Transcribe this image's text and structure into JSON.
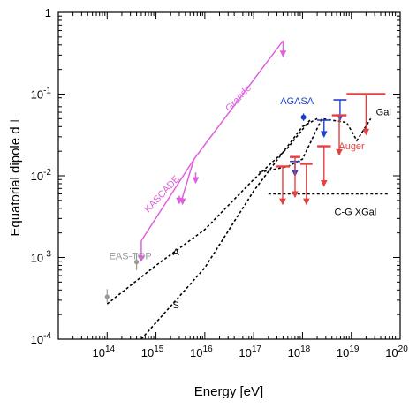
{
  "chart_data": {
    "type": "scatter",
    "xscale": "log",
    "yscale": "log",
    "xlim": [
      10000000000000.0,
      1e+20
    ],
    "ylim": [
      0.0001,
      1
    ],
    "xlabel": "Energy [eV]",
    "ylabel": "Equatorial dipole d⊥",
    "x_tick_labels": [
      {
        "base": "10",
        "exp": "14",
        "value": 100000000000000.0
      },
      {
        "base": "10",
        "exp": "15",
        "value": 1000000000000000.0
      },
      {
        "base": "10",
        "exp": "16",
        "value": 1e+16
      },
      {
        "base": "10",
        "exp": "17",
        "value": 1e+17
      },
      {
        "base": "10",
        "exp": "18",
        "value": 1e+18
      },
      {
        "base": "10",
        "exp": "19",
        "value": 1e+19
      },
      {
        "base": "10",
        "exp": "20",
        "value": 1e+20
      }
    ],
    "y_tick_labels": [
      {
        "text": "1",
        "value": 1
      },
      {
        "base": "10",
        "exp": "-1",
        "value": 0.1
      },
      {
        "base": "10",
        "exp": "-2",
        "value": 0.01
      },
      {
        "base": "10",
        "exp": "-3",
        "value": 0.001
      },
      {
        "base": "10",
        "exp": "-4",
        "value": 0.0001
      }
    ],
    "colors": {
      "kascade_grande": "#e060e0",
      "agasa": "#2040d0",
      "auger": "#e84040",
      "eastop": "#999999",
      "model": "#000000"
    },
    "eastop_points": [
      {
        "x": 100000000000000.0,
        "y": 0.00033,
        "ylo": 0.00028,
        "yhi": 0.00041
      },
      {
        "x": 400000000000000.0,
        "y": 0.00088,
        "ylo": 0.0007,
        "yhi": 0.0011
      }
    ],
    "kascade_limits": [
      {
        "x": 500000000000000.0,
        "y": 0.0016,
        "xlo": 500000000000000.0,
        "xhi": 6000000000000000.0,
        "ystart": 0.0016,
        "yend": 0.016,
        "arrow_to": 0.0009
      },
      {
        "x": 3500000000000000.0,
        "y": 0.0055,
        "xlo": 3500000000000000.0,
        "xhi": 6000000000000000.0,
        "ystart": 0.0055,
        "yend": 0.016,
        "arrow_to": 0.0045
      }
    ],
    "kascade_single": [
      {
        "x": 3000000000000000.0,
        "y": 0.0057,
        "arrow_to": 0.0046
      },
      {
        "x": 6500000000000000.0,
        "y": 0.011,
        "arrow_to": 0.0082
      }
    ],
    "grande_limit": {
      "xlo": 6000000000000000.0,
      "xhi": 4e+17,
      "ylo": 0.016,
      "yhi": 0.45,
      "arrow_to": 0.29
    },
    "agasa_point": {
      "x": 1.05e+18,
      "y": 0.052,
      "ylo": 0.047,
      "yhi": 0.058
    },
    "agasa_limits": [
      {
        "xlo": 5.5e+17,
        "xhi": 9e+17,
        "y": 0.015,
        "arrow_to": 0.01
      },
      {
        "xlo": 2e+18,
        "xhi": 3.8e+18,
        "y": 0.048,
        "arrow_to": 0.03
      },
      {
        "xlo": 4.3e+18,
        "xhi": 8e+18,
        "y": 0.085,
        "arrow_to": 0.048
      }
    ],
    "auger_limits": [
      {
        "xlo": 2.8e+17,
        "xhi": 5.5e+17,
        "y": 0.013,
        "arrow_to": 0.0045
      },
      {
        "xlo": 5.5e+17,
        "xhi": 9e+17,
        "y": 0.017,
        "arrow_to": 0.0055
      },
      {
        "xlo": 9e+17,
        "xhi": 1.6e+18,
        "y": 0.014,
        "arrow_to": 0.0045
      },
      {
        "xlo": 2e+18,
        "xhi": 3.8e+18,
        "y": 0.023,
        "arrow_to": 0.0075
      },
      {
        "xlo": 4e+18,
        "xhi": 8e+18,
        "y": 0.055,
        "arrow_to": 0.018
      },
      {
        "xlo": 8e+18,
        "xhi": 5e+19,
        "y": 0.1,
        "arrow_to": 0.032
      }
    ],
    "model_curves": [
      {
        "label": "A",
        "points": [
          [
            100000000000000.0,
            0.00027
          ],
          [
            1000000000000000.0,
            0.0008
          ],
          [
            1e+16,
            0.0022
          ],
          [
            1e+17,
            0.009
          ],
          [
            5e+17,
            0.022
          ],
          [
            1.5e+18,
            0.05
          ]
        ]
      },
      {
        "label": "S",
        "points": [
          [
            500000000000000.0,
            0.0001
          ],
          [
            1e+16,
            0.00075
          ],
          [
            1e+17,
            0.0065
          ],
          [
            1e+18,
            0.04
          ],
          [
            2e+18,
            0.05
          ]
        ]
      },
      {
        "label": "Gal",
        "points": [
          [
            1.3e+17,
            0.011
          ],
          [
            5e+17,
            0.013
          ],
          [
            1e+18,
            0.016
          ],
          [
            2.5e+18,
            0.05
          ],
          [
            8e+18,
            0.045
          ],
          [
            1.3e+19,
            0.027
          ],
          [
            2.5e+19,
            0.05
          ]
        ]
      },
      {
        "label": "C-G XGal",
        "points": [
          [
            2e+17,
            0.006
          ],
          [
            6e+19,
            0.006
          ]
        ]
      }
    ],
    "annotations": [
      {
        "text": "EAS-TOP",
        "x": 110000000000000.0,
        "y": 0.00095,
        "color": "eastop"
      },
      {
        "text": "KASCADE",
        "x": 700000000000000.0,
        "y": 0.0035,
        "color": "kascade_grande",
        "rotate": -47
      },
      {
        "text": "Grande",
        "x": 3.2e+16,
        "y": 0.06,
        "color": "kascade_grande",
        "rotate": -47
      },
      {
        "text": "AGASA",
        "x": 3.5e+17,
        "y": 0.075,
        "color": "agasa"
      },
      {
        "text": "Auger",
        "x": 5.5e+18,
        "y": 0.021,
        "color": "auger"
      },
      {
        "text": "Gal",
        "x": 3.2e+19,
        "y": 0.055,
        "color": "model"
      },
      {
        "text": "C-G XGal",
        "x": 4.5e+18,
        "y": 0.0033,
        "color": "model"
      },
      {
        "text": "A",
        "x": 2200000000000000.0,
        "y": 0.00106,
        "color": "model"
      },
      {
        "text": "S",
        "x": 2200000000000000.0,
        "y": 0.00024,
        "color": "model"
      }
    ]
  }
}
